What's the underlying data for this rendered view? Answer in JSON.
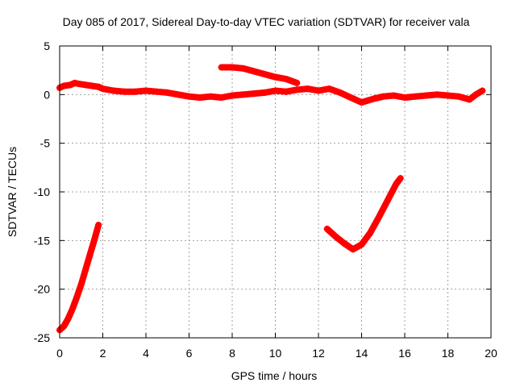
{
  "chart_data": {
    "type": "line",
    "title": "Day 085 of 2017, Sidereal Day-to-day VTEC variation (SDTVAR) for receiver vala",
    "xlabel": "GPS time / hours",
    "ylabel": "SDTVAR / TECUs",
    "xlim": [
      0,
      20
    ],
    "ylim": [
      -25,
      5
    ],
    "xticks": [
      0,
      2,
      4,
      6,
      8,
      10,
      12,
      14,
      16,
      18,
      20
    ],
    "yticks": [
      -25,
      -20,
      -15,
      -10,
      -5,
      0,
      5
    ],
    "xtick_labels": [
      "0",
      "2",
      "4",
      "6",
      "8",
      "10",
      "12",
      "14",
      "16",
      "18",
      "20"
    ],
    "ytick_labels": [
      "-25",
      "-20",
      "-15",
      "-10",
      "-5",
      "0",
      "5"
    ],
    "grid": true,
    "series_color": "#ff0000",
    "marker": "+",
    "series": [
      {
        "name": "main-trace",
        "x": [
          0.0,
          0.2,
          0.5,
          0.7,
          0.9,
          1.2,
          1.5,
          1.8,
          2.0,
          2.5,
          3.0,
          3.5,
          4.0,
          4.5,
          5.0,
          5.5,
          6.0,
          6.5,
          7.0,
          7.5,
          8.0,
          8.5,
          9.0,
          9.5,
          10.0,
          10.5,
          11.0,
          11.5,
          12.0,
          12.5,
          13.0,
          13.5,
          14.0,
          14.3,
          14.6,
          15.0,
          15.5,
          16.0,
          16.5,
          17.0,
          17.5,
          18.0,
          18.5,
          19.0,
          19.3,
          19.6
        ],
        "y": [
          0.7,
          0.9,
          1.0,
          1.2,
          1.1,
          1.0,
          0.9,
          0.8,
          0.6,
          0.4,
          0.3,
          0.3,
          0.4,
          0.3,
          0.2,
          0.0,
          -0.2,
          -0.3,
          -0.2,
          -0.3,
          -0.1,
          0.0,
          0.1,
          0.2,
          0.4,
          0.3,
          0.5,
          0.6,
          0.4,
          0.6,
          0.2,
          -0.3,
          -0.8,
          -0.6,
          -0.4,
          -0.2,
          -0.1,
          -0.3,
          -0.2,
          -0.1,
          0.0,
          -0.1,
          -0.2,
          -0.5,
          0.0,
          0.4
        ]
      },
      {
        "name": "upper-segment",
        "x": [
          7.5,
          8.0,
          8.5,
          9.0,
          9.5,
          10.0,
          10.5,
          11.0
        ],
        "y": [
          2.8,
          2.8,
          2.7,
          2.4,
          2.1,
          1.8,
          1.6,
          1.2
        ]
      },
      {
        "name": "early-drop",
        "x": [
          0.0,
          0.2,
          0.4,
          0.6,
          0.8,
          1.0,
          1.2,
          1.4,
          1.6,
          1.8
        ],
        "y": [
          -24.2,
          -23.8,
          -23.0,
          -22.0,
          -20.8,
          -19.5,
          -18.0,
          -16.5,
          -15.0,
          -13.4
        ]
      },
      {
        "name": "late-dip",
        "x": [
          12.4,
          12.8,
          13.2,
          13.6,
          14.0,
          14.4,
          14.8,
          15.2,
          15.6,
          15.8
        ],
        "y": [
          -13.8,
          -14.6,
          -15.3,
          -15.9,
          -15.4,
          -14.2,
          -12.6,
          -10.9,
          -9.2,
          -8.6
        ]
      }
    ]
  }
}
